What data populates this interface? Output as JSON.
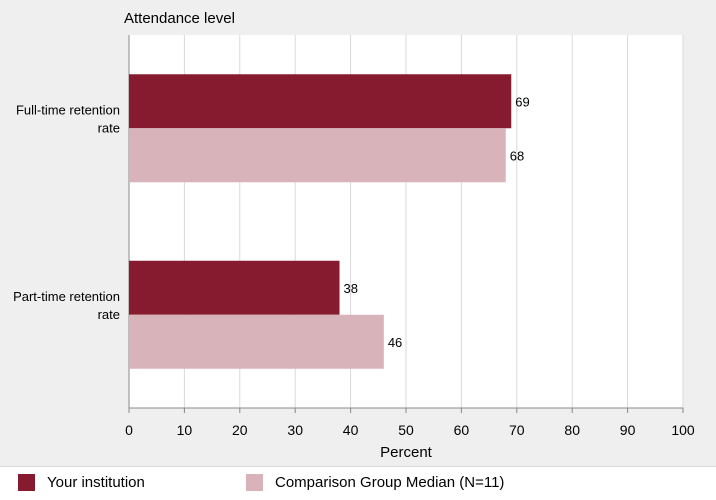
{
  "chart_data": {
    "type": "bar",
    "orientation": "horizontal",
    "title": "Attendance level",
    "xlabel": "Percent",
    "xlim": [
      0,
      100
    ],
    "xticks": [
      0,
      10,
      20,
      30,
      40,
      50,
      60,
      70,
      80,
      90,
      100
    ],
    "grid": true,
    "legend_position": "bottom",
    "categories": [
      [
        "Full-time retention",
        "rate"
      ],
      [
        "Part-time retention",
        "rate"
      ]
    ],
    "series": [
      {
        "name": "Your institution",
        "color": "#861a2e",
        "values": [
          69,
          38
        ]
      },
      {
        "name": "Comparison Group Median (N=11)",
        "color": "#d8b4ba",
        "values": [
          68,
          46
        ]
      }
    ]
  }
}
